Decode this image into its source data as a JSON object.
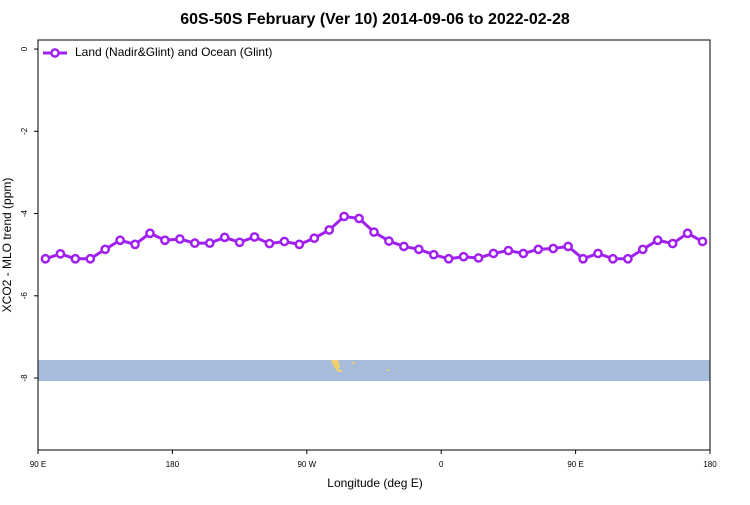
{
  "chart_data": {
    "type": "line",
    "title": "60S-50S February (Ver 10)   2014-09-06 to 2022-02-28",
    "x_label": "Longitude (deg E)",
    "y_label": "XCO2 - MLO trend (ppm)",
    "xlim": [
      90,
      540
    ],
    "xticks": [
      {
        "value": 90,
        "label": "90 E"
      },
      {
        "value": 180,
        "label": "180"
      },
      {
        "value": 270,
        "label": "90 W"
      },
      {
        "value": 360,
        "label": "0"
      },
      {
        "value": 450,
        "label": "90 E"
      },
      {
        "value": 540,
        "label": "180"
      }
    ],
    "ylim": [
      -9.75,
      0.22
    ],
    "yticks": [
      0,
      -2,
      -4,
      -6,
      -8
    ],
    "legend": "top-left",
    "x": [
      95,
      105,
      115,
      125,
      135,
      145,
      155,
      165,
      175,
      185,
      195,
      205,
      215,
      225,
      235,
      245,
      255,
      265,
      275,
      285,
      295,
      305,
      315,
      325,
      335,
      345,
      355,
      365,
      375,
      385,
      395,
      405,
      415,
      425,
      435,
      445,
      455,
      465,
      475,
      485,
      495,
      505,
      515,
      525,
      535
    ],
    "series": [
      {
        "name": "Land (Nadir&Glint) and Ocean (Glint)",
        "color": "#a020f0",
        "values": [
          -5.1,
          -4.98,
          -5.1,
          -5.1,
          -4.87,
          -4.65,
          -4.75,
          -4.48,
          -4.65,
          -4.62,
          -4.72,
          -4.72,
          -4.58,
          -4.7,
          -4.57,
          -4.73,
          -4.68,
          -4.75,
          -4.6,
          -4.4,
          -4.07,
          -4.12,
          -4.45,
          -4.67,
          -4.8,
          -4.87,
          -5.0,
          -5.1,
          -5.05,
          -5.08,
          -4.97,
          -4.9,
          -4.97,
          -4.87,
          -4.85,
          -4.8,
          -5.1,
          -4.97,
          -5.1,
          -5.1,
          -4.87,
          -4.65,
          -4.73,
          -4.48,
          -4.68
        ]
      }
    ]
  }
}
